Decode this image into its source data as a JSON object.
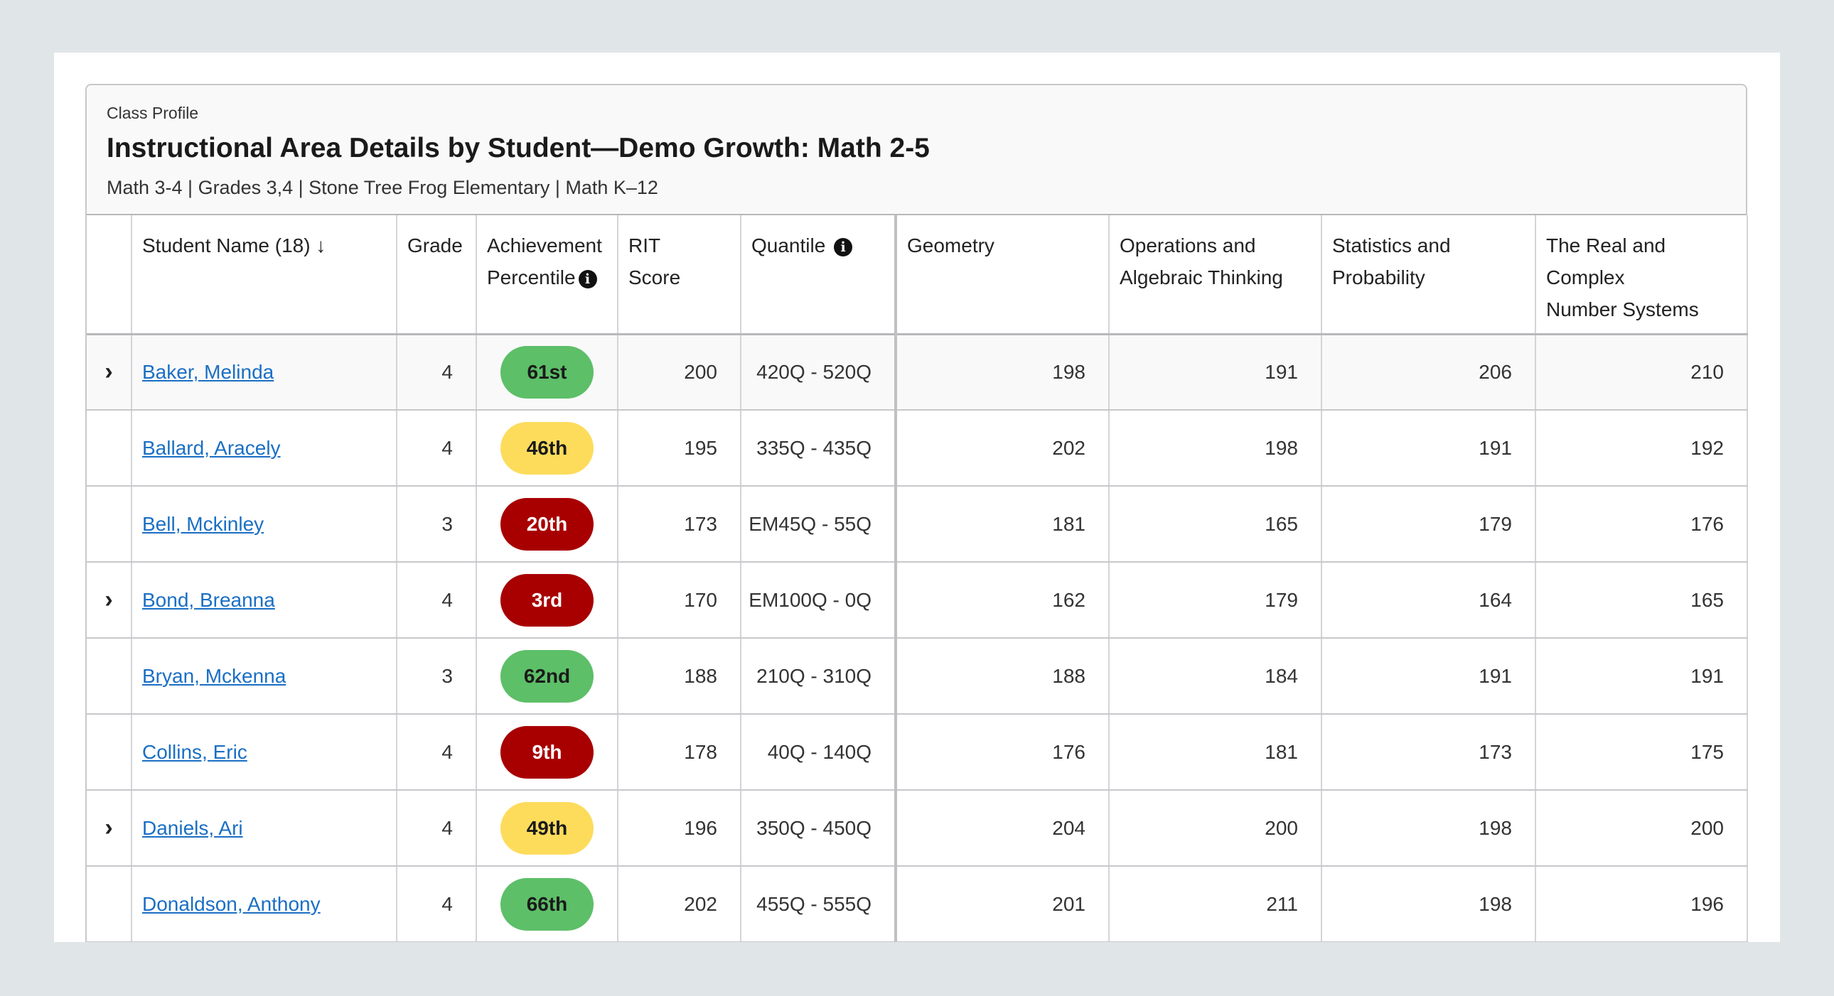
{
  "header": {
    "kicker": "Class Profile",
    "title": "Instructional Area Details by Student—Demo Growth: Math 2-5",
    "subtitle": "Math 3-4 | Grades 3,4 | Stone Tree Frog Elementary | Math K–12"
  },
  "columns": {
    "student": "Student Name (18)",
    "sort_icon": "↓",
    "grade": "Grade",
    "achievement_1": "Achievement",
    "achievement_2": "Percentile",
    "rit_1": "RIT",
    "rit_2": "Score",
    "quantile": "Quantile",
    "geometry": "Geometry",
    "ops_1": "Operations and",
    "ops_2": "Algebraic Thinking",
    "stats_1": "Statistics and",
    "stats_2": "Probability",
    "real_1": "The Real and",
    "real_2": "Complex",
    "real_3": "Number Systems",
    "info_icon": "i"
  },
  "colors": {
    "green": "#5dbf68",
    "yellow": "#fddc5c",
    "red": "#a80000",
    "link": "#1a6fc4"
  },
  "rows": [
    {
      "expandable": true,
      "name": "Baker, Melinda",
      "grade": "4",
      "percentile": "61st",
      "level": "green",
      "rit": "200",
      "quantile": "420Q - 520Q",
      "geometry": "198",
      "ops": "191",
      "stats": "206",
      "real": "210"
    },
    {
      "expandable": false,
      "name": "Ballard, Aracely",
      "grade": "4",
      "percentile": "46th",
      "level": "yellow",
      "rit": "195",
      "quantile": "335Q - 435Q",
      "geometry": "202",
      "ops": "198",
      "stats": "191",
      "real": "192"
    },
    {
      "expandable": false,
      "name": "Bell, Mckinley",
      "grade": "3",
      "percentile": "20th",
      "level": "red",
      "rit": "173",
      "quantile": "EM45Q - 55Q",
      "geometry": "181",
      "ops": "165",
      "stats": "179",
      "real": "176"
    },
    {
      "expandable": true,
      "name": "Bond, Breanna",
      "grade": "4",
      "percentile": "3rd",
      "level": "red",
      "rit": "170",
      "quantile": "EM100Q - 0Q",
      "geometry": "162",
      "ops": "179",
      "stats": "164",
      "real": "165"
    },
    {
      "expandable": false,
      "name": "Bryan, Mckenna",
      "grade": "3",
      "percentile": "62nd",
      "level": "green",
      "rit": "188",
      "quantile": "210Q - 310Q",
      "geometry": "188",
      "ops": "184",
      "stats": "191",
      "real": "191"
    },
    {
      "expandable": false,
      "name": "Collins, Eric",
      "grade": "4",
      "percentile": "9th",
      "level": "red",
      "rit": "178",
      "quantile": "40Q - 140Q",
      "geometry": "176",
      "ops": "181",
      "stats": "173",
      "real": "175"
    },
    {
      "expandable": true,
      "name": "Daniels, Ari",
      "grade": "4",
      "percentile": "49th",
      "level": "yellow",
      "rit": "196",
      "quantile": "350Q - 450Q",
      "geometry": "204",
      "ops": "200",
      "stats": "198",
      "real": "200"
    },
    {
      "expandable": false,
      "name": "Donaldson, Anthony",
      "grade": "4",
      "percentile": "66th",
      "level": "green",
      "rit": "202",
      "quantile": "455Q - 555Q",
      "geometry": "201",
      "ops": "211",
      "stats": "198",
      "real": "196"
    },
    {
      "expandable": false,
      "name": "",
      "grade": "",
      "percentile": "",
      "level": "",
      "rit": "",
      "quantile": "",
      "geometry": "",
      "ops": "",
      "stats": "",
      "real": ""
    }
  ]
}
